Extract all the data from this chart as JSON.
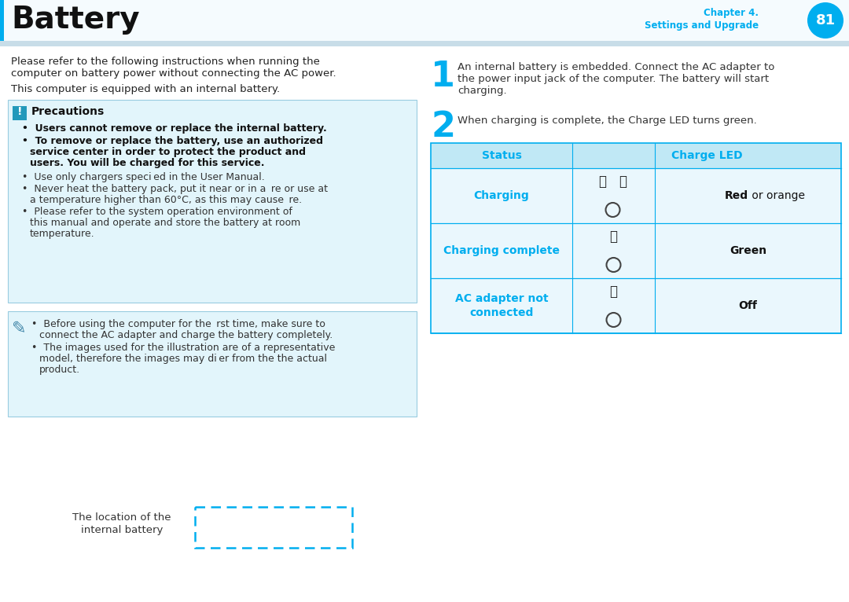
{
  "title": "Battery",
  "chapter_line1": "Chapter 4.",
  "chapter_line2": "Settings and Upgrade",
  "page_num": "81",
  "cyan": "#00AEEF",
  "light_cyan_bg": "#E2F5FB",
  "table_header_bg": "#C0E8F5",
  "table_row_bg": "#EAF7FD",
  "intro1": "Please refer to the following instructions when running the",
  "intro2": "computer on battery power without connecting the AC power.",
  "intro3": "This computer is equipped with an internal battery.",
  "prec_title": "Precautions",
  "prec_b1": "Users cannot remove or replace the internal battery.",
  "prec_b2a": "To remove or replace the battery, use an authorized",
  "prec_b2b": "service center in order to protect the product and",
  "prec_b2c": "users. You will be charged for this service.",
  "prec_n1": "Use only chargers speci ed in the User Manual.",
  "prec_n2a": "Never heat the battery pack, put it near or in a  re or use at",
  "prec_n2b": "a temperature higher than 60°C, as this may cause  re.",
  "prec_n3a": "Please refer to the system operation environment of",
  "prec_n3b": "this manual and operate and store the battery at room",
  "prec_n3c": "temperature.",
  "note_1a": "Before using the computer for the  rst time, make sure to",
  "note_1b": "connect the AC adapter and charge the battery completely.",
  "note_2a": "The images used for the illustration are of a representative",
  "note_2b": "model, therefore the images may di er from the the actual",
  "note_2c": "product.",
  "step1_text1": "An internal battery is embedded. Connect the AC adapter to",
  "step1_text2": "the power input jack of the computer. The battery will start",
  "step1_text3": "charging.",
  "step2_text": "When charging is complete, the Charge LED turns green.",
  "tbl_h1": "Status",
  "tbl_h2": "Charge LED",
  "r1_s": "Charging",
  "r1_led_bold": "Red",
  "r1_led_norm": " or orange",
  "r2_s": "Charging complete",
  "r2_led": "Green",
  "r3_s1": "AC adapter not",
  "r3_s2": "connected",
  "r3_led": "Off",
  "bot_t1": "The location of the",
  "bot_t2": "internal battery"
}
